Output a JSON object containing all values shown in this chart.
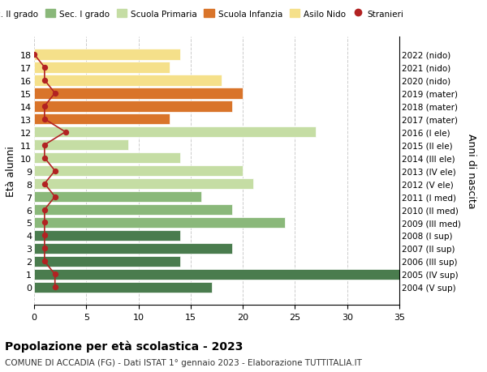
{
  "ages": [
    18,
    17,
    16,
    15,
    14,
    13,
    12,
    11,
    10,
    9,
    8,
    7,
    6,
    5,
    4,
    3,
    2,
    1,
    0
  ],
  "years": [
    "2004 (V sup)",
    "2005 (IV sup)",
    "2006 (III sup)",
    "2007 (II sup)",
    "2008 (I sup)",
    "2009 (III med)",
    "2010 (II med)",
    "2011 (I med)",
    "2012 (V ele)",
    "2013 (IV ele)",
    "2014 (III ele)",
    "2015 (II ele)",
    "2016 (I ele)",
    "2017 (mater)",
    "2018 (mater)",
    "2019 (mater)",
    "2020 (nido)",
    "2021 (nido)",
    "2022 (nido)"
  ],
  "bar_values": [
    17,
    35,
    14,
    19,
    14,
    24,
    19,
    16,
    21,
    20,
    14,
    9,
    27,
    13,
    19,
    20,
    18,
    13,
    14
  ],
  "bar_colors": [
    "#4a7c4e",
    "#4a7c4e",
    "#4a7c4e",
    "#4a7c4e",
    "#4a7c4e",
    "#8ab87a",
    "#8ab87a",
    "#8ab87a",
    "#c5dda4",
    "#c5dda4",
    "#c5dda4",
    "#c5dda4",
    "#c5dda4",
    "#d9742a",
    "#d9742a",
    "#d9742a",
    "#f5e08a",
    "#f5e08a",
    "#f5e08a"
  ],
  "stranieri_values": [
    2,
    2,
    1,
    1,
    1,
    1,
    1,
    2,
    1,
    2,
    1,
    1,
    3,
    1,
    1,
    2,
    1,
    1,
    0
  ],
  "stranieri_color": "#b22222",
  "legend_items": [
    {
      "label": "Sec. II grado",
      "color": "#4a7c4e"
    },
    {
      "label": "Sec. I grado",
      "color": "#8ab87a"
    },
    {
      "label": "Scuola Primaria",
      "color": "#c5dda4"
    },
    {
      "label": "Scuola Infanzia",
      "color": "#d9742a"
    },
    {
      "label": "Asilo Nido",
      "color": "#f5e08a"
    },
    {
      "label": "Stranieri",
      "color": "#b22222"
    }
  ],
  "ylabel_left": "Età alunni",
  "ylabel_right": "Anni di nascita",
  "xlim": [
    0,
    35
  ],
  "xticks": [
    0,
    5,
    10,
    15,
    20,
    25,
    30,
    35
  ],
  "title": "Popolazione per età scolastica - 2023",
  "subtitle": "COMUNE DI ACCADIA (FG) - Dati ISTAT 1° gennaio 2023 - Elaborazione TUTTITALIA.IT",
  "background_color": "#ffffff",
  "grid_color": "#cccccc"
}
